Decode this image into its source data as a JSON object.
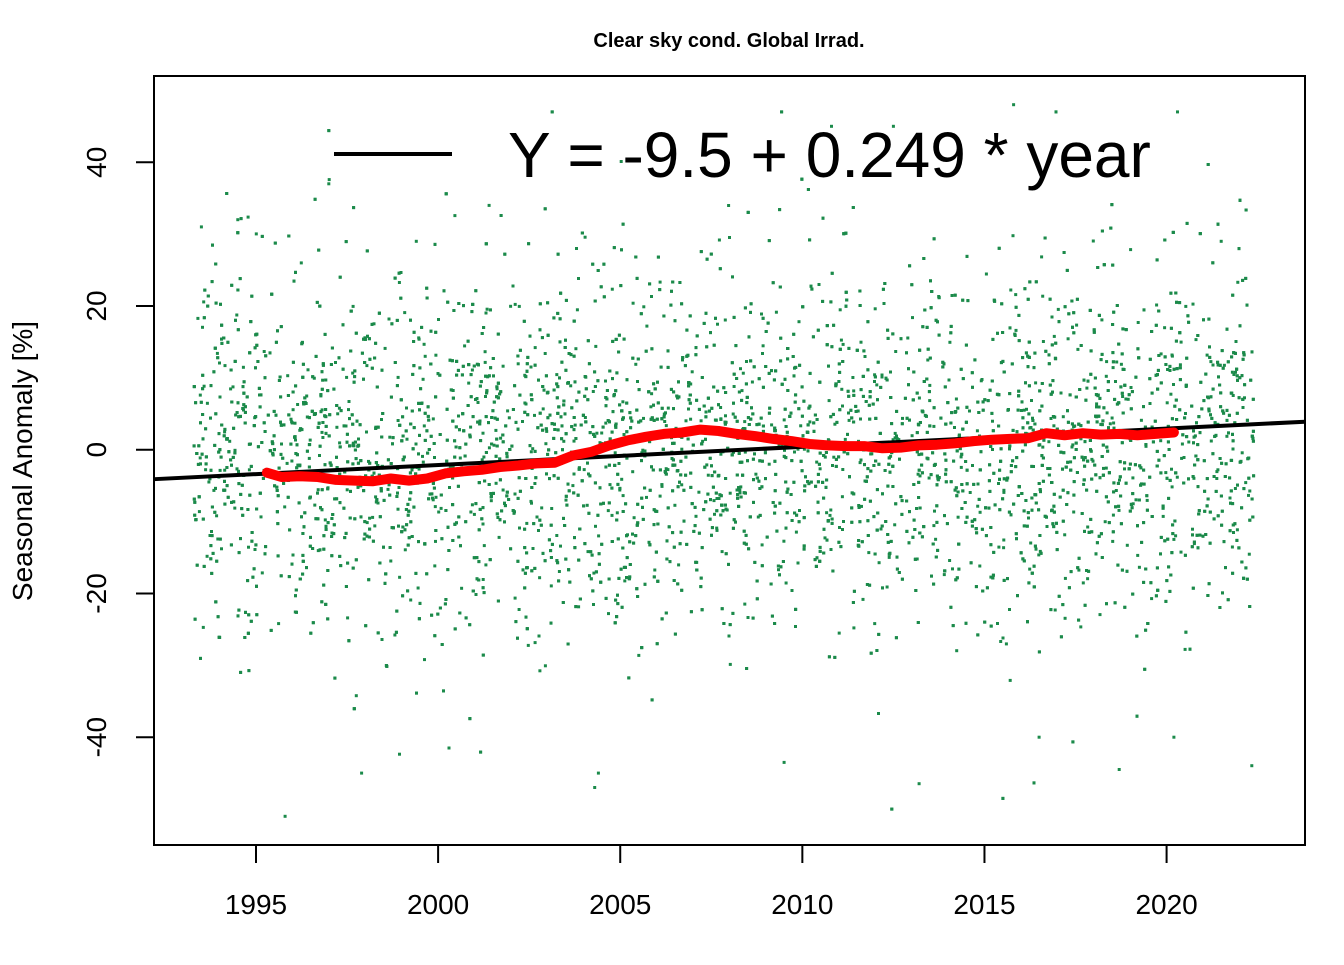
{
  "chart_data": {
    "type": "scatter",
    "title": "Clear sky cond. Global Irrad.",
    "xlabel": "",
    "ylabel": "Seasonal Anomaly [%]",
    "xlim": [
      1992.2,
      2023.8
    ],
    "ylim": [
      -55,
      52
    ],
    "x_ticks": [
      1995,
      2000,
      2005,
      2010,
      2015,
      2020
    ],
    "y_ticks": [
      -40,
      -20,
      0,
      20,
      40
    ],
    "grid": false,
    "legend": {
      "position": "top",
      "entries": [
        {
          "label": "Y = -9.5 + 0.249 * year",
          "style": "line",
          "color": "#000000"
        }
      ]
    },
    "colors": {
      "points": "#1b8a4a",
      "smooth": "#ff0000",
      "trend": "#000000"
    },
    "points_series": {
      "x_range": [
        1993.3,
        2022.4
      ],
      "count": 6000,
      "description_hidden": true,
      "sample": [
        [
          1993.5,
          31.0
        ],
        [
          1994.5,
          32.0
        ],
        [
          1995.8,
          -51.0
        ],
        [
          1997.0,
          37.0
        ],
        [
          1997.9,
          -45.0
        ],
        [
          1999.4,
          29.0
        ],
        [
          2000.3,
          -41.5
        ],
        [
          2001.4,
          34.0
        ],
        [
          2004.3,
          -47.0
        ],
        [
          2004.4,
          -45.0
        ],
        [
          2009.5,
          -43.5
        ],
        [
          2012.5,
          45.0
        ],
        [
          2015.8,
          48.0
        ],
        [
          2020.3,
          47.0
        ],
        [
          2021.5,
          29.0
        ],
        [
          2016.5,
          -40.0
        ],
        [
          2018.7,
          -44.5
        ],
        [
          2020.2,
          -40.0
        ],
        [
          2003.8,
          28.0
        ],
        [
          2010.8,
          45.0
        ]
      ]
    },
    "smooth_series": {
      "name": "",
      "x": [
        1995.3,
        1995.7,
        1996.2,
        1996.7,
        1997.2,
        1997.7,
        1998.2,
        1998.7,
        1999.2,
        1999.7,
        2000.2,
        2000.7,
        2001.2,
        2001.7,
        2002.2,
        2002.7,
        2003.2,
        2003.7,
        2004.2,
        2004.7,
        2005.2,
        2005.7,
        2006.2,
        2006.7,
        2007.2,
        2007.7,
        2008.2,
        2008.7,
        2009.2,
        2009.7,
        2010.2,
        2010.7,
        2011.2,
        2011.7,
        2012.2,
        2012.7,
        2013.2,
        2013.7,
        2014.2,
        2014.7,
        2015.2,
        2015.7,
        2016.2,
        2016.7,
        2017.2,
        2017.7,
        2018.2,
        2018.7,
        2019.2,
        2019.7,
        2020.2
      ],
      "y": [
        -3.2,
        -3.8,
        -3.7,
        -3.8,
        -4.2,
        -4.3,
        -4.4,
        -4.0,
        -4.3,
        -4.0,
        -3.3,
        -3.0,
        -2.8,
        -2.4,
        -2.2,
        -1.9,
        -1.8,
        -0.8,
        -0.3,
        0.6,
        1.3,
        1.8,
        2.2,
        2.4,
        2.8,
        2.6,
        2.2,
        1.9,
        1.5,
        1.2,
        0.8,
        0.6,
        0.5,
        0.5,
        0.2,
        0.3,
        0.6,
        0.7,
        0.9,
        1.2,
        1.4,
        1.5,
        1.6,
        2.3,
        2.0,
        2.3,
        2.1,
        2.2,
        2.0,
        2.2,
        2.4
      ]
    },
    "trend_series": {
      "name": "Y = -9.5 + 0.249 * year",
      "x": [
        1992.2,
        2023.8
      ],
      "y": [
        -4.1,
        3.9
      ]
    }
  }
}
